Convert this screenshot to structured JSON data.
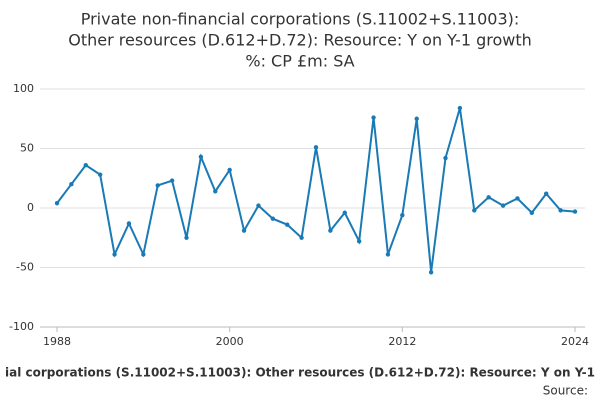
{
  "chart_data": {
    "type": "line",
    "title": [
      "Private non-financial corporations (S.11002+S.11003):",
      "Other resources (D.612+D.72): Resource: Y on Y-1 growth",
      "%: CP £m: SA"
    ],
    "x": [
      1988,
      1989,
      1990,
      1991,
      1992,
      1993,
      1994,
      1995,
      1996,
      1997,
      1998,
      1999,
      2000,
      2001,
      2002,
      2003,
      2004,
      2005,
      2006,
      2007,
      2008,
      2009,
      2010,
      2011,
      2012,
      2013,
      2014,
      2015,
      2016,
      2017,
      2018,
      2019,
      2020,
      2021,
      2022,
      2023,
      2024
    ],
    "series": [
      {
        "name": "ial corporations (S.11002+S.11003): Other resources (D.612+D.72): Resource: Y on Y-1",
        "color": "#1a7ab5",
        "values": [
          4,
          20,
          36,
          28,
          -39,
          -13,
          -39,
          19,
          23,
          -25,
          43,
          14,
          32,
          -19,
          2,
          -9,
          -14,
          -25,
          51,
          -19,
          -4,
          -28,
          76,
          -39,
          -6,
          75,
          -54,
          42,
          84,
          -2,
          9,
          2,
          8,
          -4,
          12,
          -2,
          -3
        ]
      }
    ],
    "xlim": [
      1988,
      2024
    ],
    "xticks": [
      1988,
      2000,
      2012,
      2024
    ],
    "ylim": [
      -100,
      100
    ],
    "yticks": [
      -100,
      -50,
      0,
      50,
      100
    ],
    "grid": true,
    "source": "Source:"
  }
}
